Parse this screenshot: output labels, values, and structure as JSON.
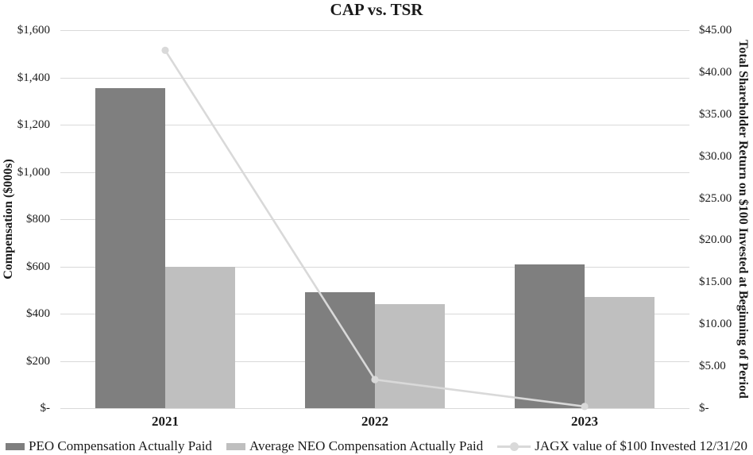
{
  "chart_data": {
    "type": "bar+line-combo",
    "title": "CAP vs. TSR",
    "categories": [
      "2021",
      "2022",
      "2023"
    ],
    "series": [
      {
        "name": "PEO Compensation Actually Paid",
        "type": "bar",
        "axis": "left",
        "color": "#7f7f7f",
        "values": [
          1355,
          490,
          610
        ]
      },
      {
        "name": "Average NEO Compensation Actually Paid",
        "type": "bar",
        "axis": "left",
        "color": "#bfbfbf",
        "values": [
          600,
          440,
          470
        ]
      },
      {
        "name": "JAGX value of $100 Invested 12/31/20",
        "type": "line",
        "axis": "right",
        "color": "#d9d9d9",
        "values": [
          42.6,
          3.4,
          0.2
        ]
      }
    ],
    "left_axis": {
      "title": "Compensation ($000s)",
      "min": 0,
      "max": 1600,
      "step": 200,
      "tick_labels": [
        "$-",
        "$200",
        "$400",
        "$600",
        "$800",
        "$1,000",
        "$1,200",
        "$1,400",
        "$1,600"
      ]
    },
    "right_axis": {
      "title": "Total Shareholder Return on $100 Invested at Beginning of Period",
      "min": 0,
      "max": 45,
      "step": 5,
      "tick_labels": [
        "$-",
        "$5.00",
        "$10.00",
        "$15.00",
        "$20.00",
        "$25.00",
        "$30.00",
        "$35.00",
        "$40.00",
        "$45.00"
      ]
    },
    "grid": "horizontal",
    "legend_position": "bottom",
    "gridline_color": "#d9d9d9",
    "text_color": "#1a1a1a",
    "background_color": "#ffffff"
  }
}
